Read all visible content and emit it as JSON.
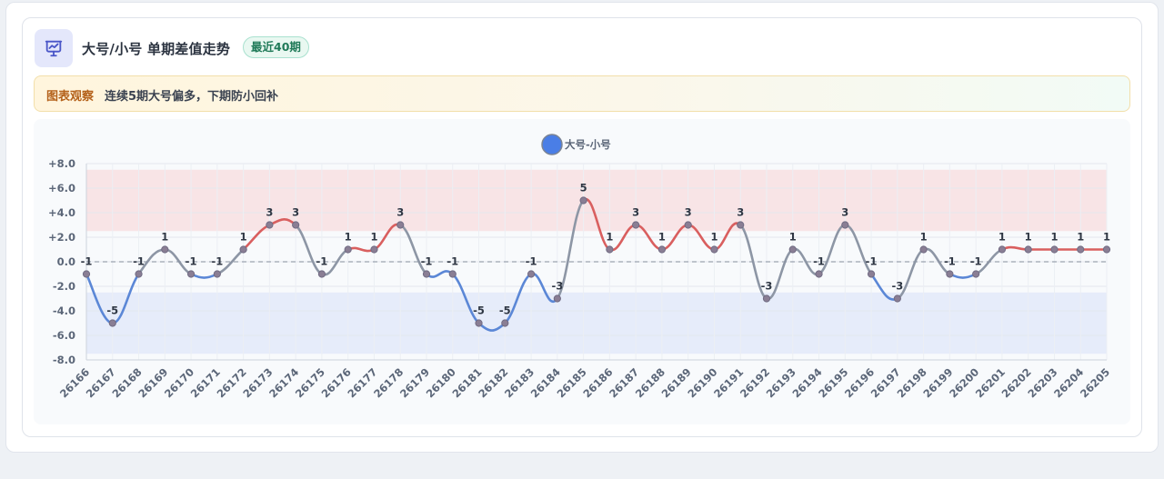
{
  "header": {
    "title": "大号/小号 单期差值走势",
    "badge": "最近40期",
    "icon": "chart-presentation-icon"
  },
  "observation": {
    "label": "图表观察",
    "text": "连续5期大号偏多，下期防小回补"
  },
  "colors": {
    "positive": "#d95f5f",
    "negative": "#5b87d6",
    "neutral": "#8d96a5",
    "legend": "#4a7ee6",
    "upper_band": "#f8e4e6",
    "lower_band": "#e6ecfa"
  },
  "chart_data": {
    "type": "line",
    "legend": {
      "label": "大号-小号",
      "position": "top-center"
    },
    "categories": [
      "26166",
      "26167",
      "26168",
      "26169",
      "26170",
      "26171",
      "26172",
      "26173",
      "26174",
      "26175",
      "26176",
      "26177",
      "26178",
      "26179",
      "26180",
      "26181",
      "26182",
      "26183",
      "26184",
      "26185",
      "26186",
      "26187",
      "26188",
      "26189",
      "26190",
      "26191",
      "26192",
      "26193",
      "26194",
      "26195",
      "26196",
      "26197",
      "26198",
      "26199",
      "26200",
      "26201",
      "26202",
      "26203",
      "26204",
      "26205"
    ],
    "series": [
      {
        "name": "大号-小号",
        "values": [
          -1,
          -5,
          -1,
          1,
          -1,
          -1,
          1,
          3,
          3,
          -1,
          1,
          1,
          3,
          -1,
          -1,
          -5,
          -5,
          -1,
          -3,
          5,
          1,
          3,
          1,
          3,
          1,
          3,
          -3,
          1,
          -1,
          3,
          -1,
          -3,
          1,
          -1,
          -1,
          1,
          1,
          1,
          1,
          1
        ]
      }
    ],
    "ylim": [
      -8,
      8
    ],
    "yticks": [
      "+8.0",
      "+6.0",
      "+4.0",
      "+2.0",
      "0.0",
      "-2.0",
      "-4.0",
      "-6.0",
      "-8.0"
    ],
    "bands": [
      {
        "from": 2.5,
        "to": 7.5
      },
      {
        "from": -7.5,
        "to": -2.5
      }
    ],
    "zero_line": true,
    "grid": true
  }
}
